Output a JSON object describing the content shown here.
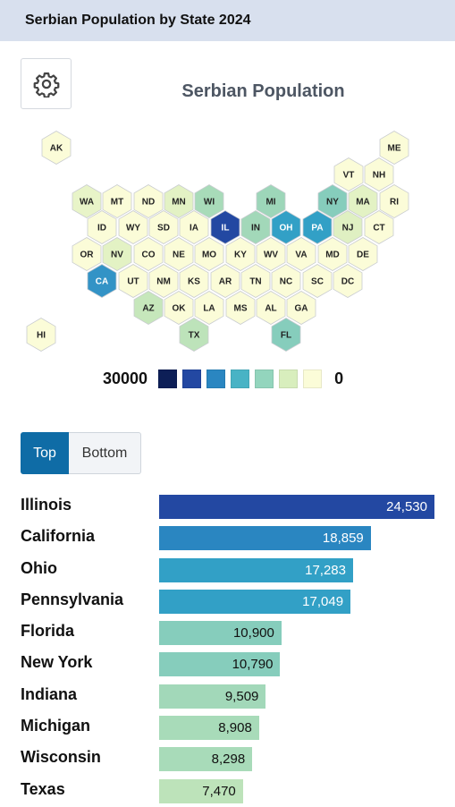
{
  "header": {
    "title": "Serbian Population by State 2024"
  },
  "settings": {
    "icon": "gear-icon"
  },
  "chart_data": [
    {
      "type": "heatmap",
      "title": "Serbian Population",
      "legend": {
        "max_label": "30000",
        "min_label": "0",
        "colors": [
          "#0d1f57",
          "#2348a2",
          "#2a86c1",
          "#48b3c5",
          "#93d5bd",
          "#d8eebd",
          "#fbfcd8"
        ]
      },
      "hexes": [
        {
          "code": "AK",
          "color": "#fbfcd8"
        },
        {
          "code": "ME",
          "color": "#fbfcd8"
        },
        {
          "code": "VT",
          "color": "#fbfcd8"
        },
        {
          "code": "NH",
          "color": "#fbfcd8"
        },
        {
          "code": "WA",
          "color": "#e8f4c8"
        },
        {
          "code": "MT",
          "color": "#fbfcd8"
        },
        {
          "code": "ND",
          "color": "#fbfcd8"
        },
        {
          "code": "MN",
          "color": "#e3f2c4"
        },
        {
          "code": "WI",
          "color": "#a8dbb9"
        },
        {
          "code": "MI",
          "color": "#9dd6b9"
        },
        {
          "code": "NY",
          "color": "#86cdbc"
        },
        {
          "code": "MA",
          "color": "#e3f2c4"
        },
        {
          "code": "RI",
          "color": "#fbfcd8"
        },
        {
          "code": "ID",
          "color": "#fbfcd8"
        },
        {
          "code": "WY",
          "color": "#fbfcd8"
        },
        {
          "code": "SD",
          "color": "#fbfcd8"
        },
        {
          "code": "IA",
          "color": "#fbfcd8"
        },
        {
          "code": "IL",
          "color": "#2348a2"
        },
        {
          "code": "IN",
          "color": "#a2d8b9"
        },
        {
          "code": "OH",
          "color": "#32a0c6"
        },
        {
          "code": "PA",
          "color": "#32a0c6"
        },
        {
          "code": "NJ",
          "color": "#dff0c2"
        },
        {
          "code": "CT",
          "color": "#fbfcd8"
        },
        {
          "code": "OR",
          "color": "#fbfcd8"
        },
        {
          "code": "NV",
          "color": "#e3f2c4"
        },
        {
          "code": "CO",
          "color": "#fbfcd8"
        },
        {
          "code": "NE",
          "color": "#fbfcd8"
        },
        {
          "code": "MO",
          "color": "#fbfcd8"
        },
        {
          "code": "KY",
          "color": "#fbfcd8"
        },
        {
          "code": "WV",
          "color": "#fbfcd8"
        },
        {
          "code": "VA",
          "color": "#fbfcd8"
        },
        {
          "code": "MD",
          "color": "#fbfcd8"
        },
        {
          "code": "DE",
          "color": "#fbfcd8"
        },
        {
          "code": "CA",
          "color": "#3393c6"
        },
        {
          "code": "UT",
          "color": "#fbfcd8"
        },
        {
          "code": "NM",
          "color": "#fbfcd8"
        },
        {
          "code": "KS",
          "color": "#fbfcd8"
        },
        {
          "code": "AR",
          "color": "#fbfcd8"
        },
        {
          "code": "TN",
          "color": "#fbfcd8"
        },
        {
          "code": "NC",
          "color": "#fbfcd8"
        },
        {
          "code": "SC",
          "color": "#fbfcd8"
        },
        {
          "code": "DC",
          "color": "#fbfcd8"
        },
        {
          "code": "AZ",
          "color": "#c6e7bb"
        },
        {
          "code": "OK",
          "color": "#fbfcd8"
        },
        {
          "code": "LA",
          "color": "#fbfcd8"
        },
        {
          "code": "MS",
          "color": "#fbfcd8"
        },
        {
          "code": "AL",
          "color": "#fbfcd8"
        },
        {
          "code": "GA",
          "color": "#fbfcd8"
        },
        {
          "code": "HI",
          "color": "#fbfcd8"
        },
        {
          "code": "TX",
          "color": "#bde3ba"
        },
        {
          "code": "FL",
          "color": "#86cdbc"
        }
      ]
    },
    {
      "type": "bar",
      "orientation": "horizontal",
      "categories": [
        "Illinois",
        "California",
        "Ohio",
        "Pennsylvania",
        "Florida",
        "New York",
        "Indiana",
        "Michigan",
        "Wisconsin",
        "Texas"
      ],
      "values": [
        24530,
        18859,
        17283,
        17049,
        10900,
        10790,
        9509,
        8908,
        8298,
        7470
      ],
      "value_labels": [
        "24,530",
        "18,859",
        "17,283",
        "17,049",
        "10,900",
        "10,790",
        "9,509",
        "8,908",
        "8,298",
        "7,470"
      ],
      "colors": [
        "#2348a2",
        "#2a86c1",
        "#32a0c6",
        "#32a0c6",
        "#86cdbc",
        "#86cdbc",
        "#a2d8b9",
        "#a8dbb9",
        "#a8dbb9",
        "#bde3ba"
      ],
      "xlim": [
        0,
        24530
      ]
    }
  ],
  "toggle": {
    "top_label": "Top",
    "bottom_label": "Bottom",
    "selected": "Top"
  }
}
